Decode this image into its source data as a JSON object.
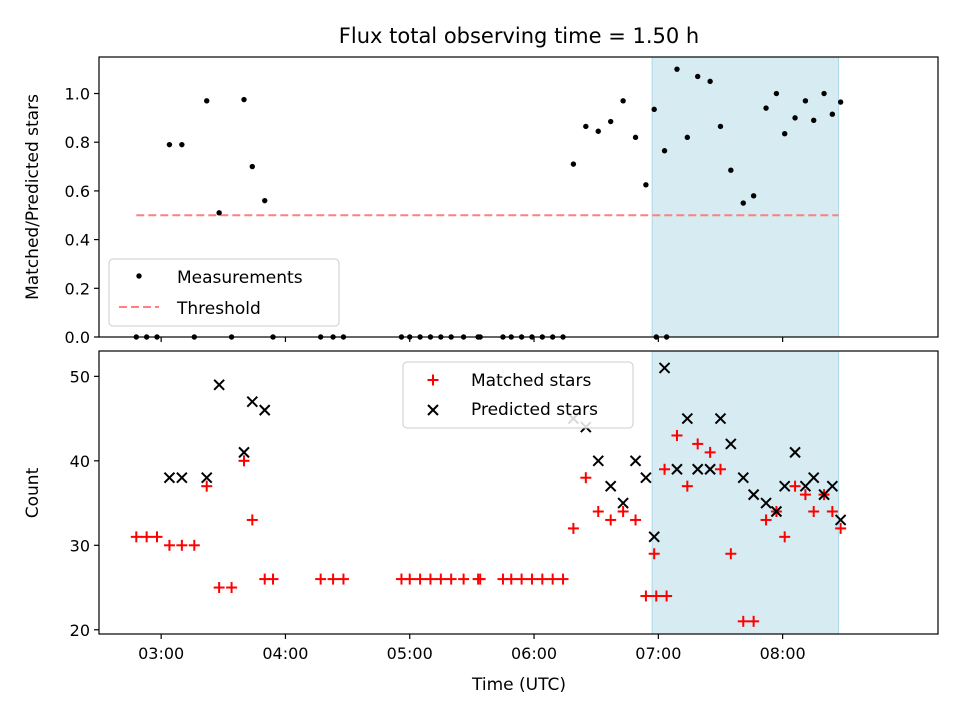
{
  "chart_data": [
    {
      "type": "scatter",
      "title": "Flux total observing time = 1.50 h",
      "xlabel": "",
      "ylabel": "Matched/Predicted stars",
      "xlim": [
        "02:30",
        "09:15"
      ],
      "ylim": [
        0,
        1.15
      ],
      "yticks": [
        "0.0",
        "0.2",
        "0.4",
        "0.6",
        "0.8",
        "1.0"
      ],
      "grid": false,
      "legend_position": "lower-left",
      "highlight_span": {
        "x": [
          "06:57",
          "08:27"
        ],
        "color": "#add8e6"
      },
      "threshold": {
        "name": "Threshold",
        "y": 0.5,
        "x": [
          "02:48",
          "08:27"
        ],
        "color": "#ff8080",
        "style": "dashed"
      },
      "series": [
        {
          "name": "Measurements",
          "marker": "dot",
          "color": "#000000",
          "points": [
            [
              "02:48",
              0.0
            ],
            [
              "02:53",
              0.0
            ],
            [
              "02:58",
              0.0
            ],
            [
              "03:04",
              0.79
            ],
            [
              "03:10",
              0.79
            ],
            [
              "03:16",
              0.0
            ],
            [
              "03:22",
              0.97
            ],
            [
              "03:28",
              0.51
            ],
            [
              "03:34",
              0.0
            ],
            [
              "03:40",
              0.975
            ],
            [
              "03:44",
              0.7
            ],
            [
              "03:50",
              0.56
            ],
            [
              "03:54",
              0.0
            ],
            [
              "04:17",
              0.0
            ],
            [
              "04:23",
              0.0
            ],
            [
              "04:28",
              0.0
            ],
            [
              "04:56",
              0.0
            ],
            [
              "05:00",
              0.0
            ],
            [
              "05:05",
              0.0
            ],
            [
              "05:10",
              0.0
            ],
            [
              "05:15",
              0.0
            ],
            [
              "05:20",
              0.0
            ],
            [
              "05:26",
              0.0
            ],
            [
              "05:33",
              0.0
            ],
            [
              "05:34",
              0.0
            ],
            [
              "05:45",
              0.0
            ],
            [
              "05:49",
              0.0
            ],
            [
              "05:54",
              0.0
            ],
            [
              "05:59",
              0.0
            ],
            [
              "06:04",
              0.0
            ],
            [
              "06:09",
              0.0
            ],
            [
              "06:14",
              0.0
            ],
            [
              "06:19",
              0.71
            ],
            [
              "06:25",
              0.865
            ],
            [
              "06:31",
              0.845
            ],
            [
              "06:37",
              0.885
            ],
            [
              "06:43",
              0.97
            ],
            [
              "06:49",
              0.82
            ],
            [
              "06:54",
              0.625
            ],
            [
              "06:59",
              0.0
            ],
            [
              "07:04",
              0.0
            ],
            [
              "06:58",
              0.935
            ],
            [
              "07:03",
              0.765
            ],
            [
              "07:09",
              1.1
            ],
            [
              "07:14",
              0.82
            ],
            [
              "07:19",
              1.07
            ],
            [
              "07:25",
              1.05
            ],
            [
              "07:30",
              0.865
            ],
            [
              "07:35",
              0.685
            ],
            [
              "07:41",
              0.55
            ],
            [
              "07:46",
              0.58
            ],
            [
              "07:52",
              0.94
            ],
            [
              "07:57",
              1.0
            ],
            [
              "08:01",
              0.835
            ],
            [
              "08:06",
              0.9
            ],
            [
              "08:11",
              0.97
            ],
            [
              "08:15",
              0.89
            ],
            [
              "08:20",
              1.0
            ],
            [
              "08:24",
              0.915
            ],
            [
              "08:28",
              0.965
            ]
          ]
        }
      ]
    },
    {
      "type": "scatter",
      "title": "",
      "xlabel": "Time (UTC)",
      "ylabel": "Count",
      "xlim": [
        "02:30",
        "09:15"
      ],
      "ylim": [
        19.5,
        53
      ],
      "xticks": [
        "03:00",
        "04:00",
        "05:00",
        "06:00",
        "07:00",
        "08:00"
      ],
      "yticks": [
        "20",
        "30",
        "40",
        "50"
      ],
      "grid": false,
      "legend_position": "upper-center",
      "highlight_span": {
        "x": [
          "06:57",
          "08:27"
        ],
        "color": "#add8e6"
      },
      "series": [
        {
          "name": "Matched stars",
          "marker": "plus",
          "color": "#ff0000",
          "points": [
            [
              "02:48",
              31
            ],
            [
              "02:53",
              31
            ],
            [
              "02:58",
              31
            ],
            [
              "03:04",
              30
            ],
            [
              "03:10",
              30
            ],
            [
              "03:16",
              30
            ],
            [
              "03:22",
              37
            ],
            [
              "03:28",
              25
            ],
            [
              "03:34",
              25
            ],
            [
              "03:40",
              40
            ],
            [
              "03:44",
              33
            ],
            [
              "03:50",
              26
            ],
            [
              "03:54",
              26
            ],
            [
              "04:17",
              26
            ],
            [
              "04:23",
              26
            ],
            [
              "04:28",
              26
            ],
            [
              "04:56",
              26
            ],
            [
              "05:00",
              26
            ],
            [
              "05:05",
              26
            ],
            [
              "05:10",
              26
            ],
            [
              "05:15",
              26
            ],
            [
              "05:20",
              26
            ],
            [
              "05:26",
              26
            ],
            [
              "05:33",
              26
            ],
            [
              "05:34",
              26
            ],
            [
              "05:45",
              26
            ],
            [
              "05:49",
              26
            ],
            [
              "05:54",
              26
            ],
            [
              "05:59",
              26
            ],
            [
              "06:04",
              26
            ],
            [
              "06:09",
              26
            ],
            [
              "06:14",
              26
            ],
            [
              "06:19",
              32
            ],
            [
              "06:25",
              38
            ],
            [
              "06:31",
              34
            ],
            [
              "06:37",
              33
            ],
            [
              "06:43",
              34
            ],
            [
              "06:49",
              33
            ],
            [
              "06:54",
              24
            ],
            [
              "06:59",
              24
            ],
            [
              "07:04",
              24
            ],
            [
              "06:58",
              29
            ],
            [
              "07:03",
              39
            ],
            [
              "07:09",
              43
            ],
            [
              "07:14",
              37
            ],
            [
              "07:19",
              42
            ],
            [
              "07:25",
              41
            ],
            [
              "07:30",
              39
            ],
            [
              "07:35",
              29
            ],
            [
              "07:41",
              21
            ],
            [
              "07:46",
              21
            ],
            [
              "07:52",
              33
            ],
            [
              "07:57",
              34
            ],
            [
              "08:01",
              31
            ],
            [
              "08:06",
              37
            ],
            [
              "08:11",
              36
            ],
            [
              "08:15",
              34
            ],
            [
              "08:20",
              36
            ],
            [
              "08:24",
              34
            ],
            [
              "08:28",
              32
            ]
          ]
        },
        {
          "name": "Predicted stars",
          "marker": "x",
          "color": "#000000",
          "points": [
            [
              "03:04",
              38
            ],
            [
              "03:10",
              38
            ],
            [
              "03:22",
              38
            ],
            [
              "03:28",
              49
            ],
            [
              "03:40",
              41
            ],
            [
              "03:44",
              47
            ],
            [
              "03:50",
              46
            ],
            [
              "06:19",
              45
            ],
            [
              "06:25",
              44
            ],
            [
              "06:31",
              40
            ],
            [
              "06:37",
              37
            ],
            [
              "06:43",
              35
            ],
            [
              "06:49",
              40
            ],
            [
              "06:54",
              38
            ],
            [
              "06:58",
              31
            ],
            [
              "07:03",
              51
            ],
            [
              "07:09",
              39
            ],
            [
              "07:14",
              45
            ],
            [
              "07:19",
              39
            ],
            [
              "07:25",
              39
            ],
            [
              "07:30",
              45
            ],
            [
              "07:35",
              42
            ],
            [
              "07:41",
              38
            ],
            [
              "07:46",
              36
            ],
            [
              "07:52",
              35
            ],
            [
              "07:57",
              34
            ],
            [
              "08:01",
              37
            ],
            [
              "08:06",
              41
            ],
            [
              "08:11",
              37
            ],
            [
              "08:15",
              38
            ],
            [
              "08:20",
              36
            ],
            [
              "08:24",
              37
            ],
            [
              "08:28",
              33
            ]
          ]
        }
      ]
    }
  ]
}
